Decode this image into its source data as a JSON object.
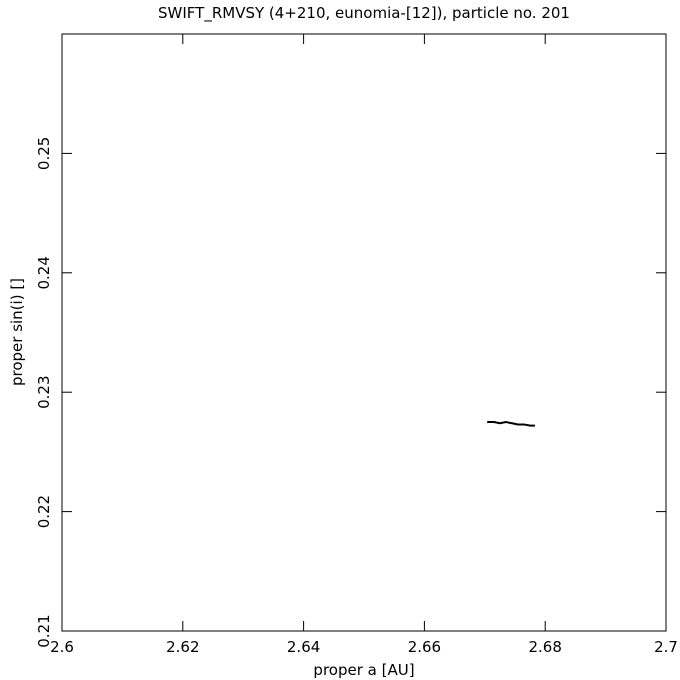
{
  "chart_data": {
    "type": "line",
    "title": "SWIFT_RMVSY (4+210, eunomia-[12]), particle no. 201",
    "x_label": "proper a [AU]",
    "y_label": "proper sin(i) []",
    "x": [
      2.6704,
      2.6715,
      2.6725,
      2.6735,
      2.6745,
      2.6755,
      2.6765,
      2.6775,
      2.6783
    ],
    "series": [
      {
        "color": "#000000",
        "values": [
          0.2275,
          0.2275,
          0.2274,
          0.2275,
          0.2274,
          0.2273,
          0.2273,
          0.2272,
          0.2272
        ]
      }
    ],
    "xlim": [
      2.6,
      2.7
    ],
    "ylim": [
      0.21,
      0.26
    ],
    "xticks": [
      2.6,
      2.62,
      2.64,
      2.66,
      2.68,
      2.7
    ],
    "yticks": [
      0.21,
      0.22,
      0.23,
      0.24,
      0.25
    ]
  }
}
